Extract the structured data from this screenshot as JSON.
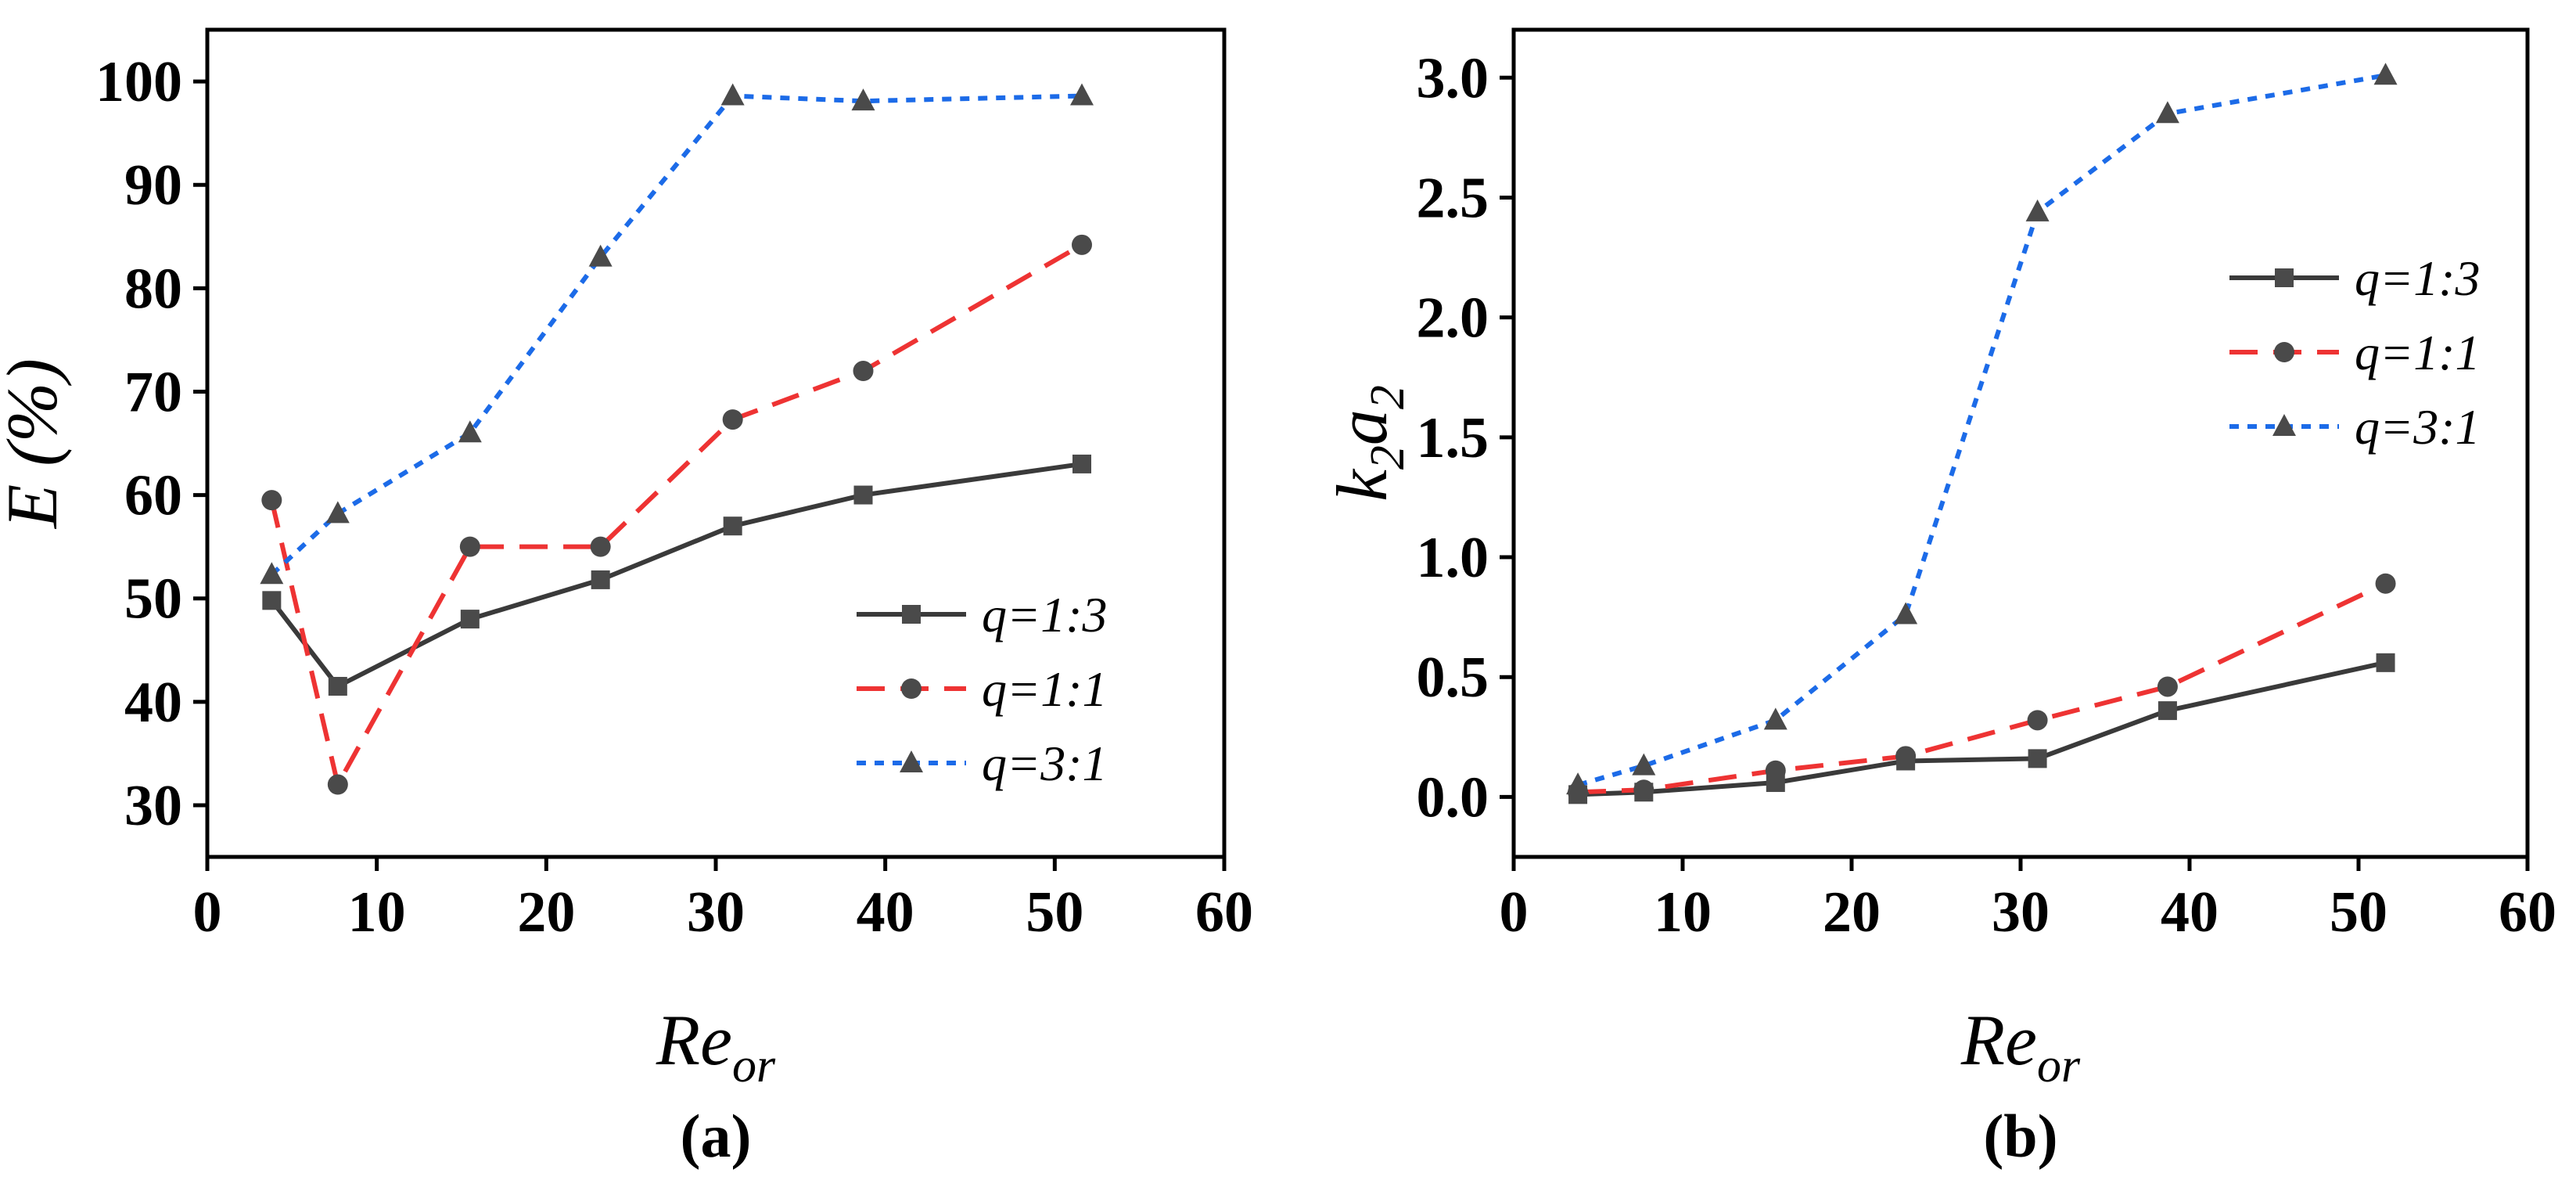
{
  "chart_data": [
    {
      "type": "line",
      "panel_label": "(a)",
      "xlabel": {
        "main": "Re",
        "sub": "or"
      },
      "ylabel": "E (%)",
      "xlim": [
        0,
        60
      ],
      "ylim": [
        25,
        105
      ],
      "xticks": [
        0,
        10,
        20,
        30,
        40,
        50,
        60
      ],
      "yticks": [
        30,
        40,
        50,
        60,
        70,
        80,
        90,
        100
      ],
      "x": [
        3.8,
        7.7,
        15.5,
        23.2,
        31,
        38.7,
        51.6
      ],
      "legend_position": "lower-right",
      "series": [
        {
          "name": "q=1:3",
          "color": "#3a3a3a",
          "dash": "solid",
          "marker": "square",
          "values": [
            49.8,
            41.5,
            48,
            51.8,
            57,
            60,
            63
          ]
        },
        {
          "name": "q=1:1",
          "color": "#ee3333",
          "dash": "dashed",
          "marker": "circle",
          "values": [
            59.5,
            32,
            55,
            55,
            67.3,
            72,
            84.2
          ]
        },
        {
          "name": "q=3:1",
          "color": "#1c6be8",
          "dash": "dotted",
          "marker": "triangle",
          "values": [
            52.3,
            58.2,
            66,
            83,
            98.6,
            98.1,
            98.6
          ]
        }
      ]
    },
    {
      "type": "line",
      "panel_label": "(b)",
      "xlabel": {
        "main": "Re",
        "sub": "or"
      },
      "ylabel": {
        "main1": "k",
        "sub1": "2",
        "main2": "a",
        "sub2": "2"
      },
      "xlim": [
        0,
        60
      ],
      "ylim": [
        -0.25,
        3.2
      ],
      "xticks": [
        0,
        10,
        20,
        30,
        40,
        50,
        60
      ],
      "yticks": [
        "0.0",
        "0.5",
        "1.0",
        "1.5",
        "2.0",
        "2.5",
        "3.0"
      ],
      "x": [
        3.8,
        7.7,
        15.5,
        23.2,
        31,
        38.7,
        51.6
      ],
      "legend_position": "upper-right",
      "series": [
        {
          "name": "q=1:3",
          "color": "#3a3a3a",
          "dash": "solid",
          "marker": "square",
          "values": [
            0.01,
            0.02,
            0.06,
            0.15,
            0.16,
            0.36,
            0.56
          ]
        },
        {
          "name": "q=1:1",
          "color": "#ee3333",
          "dash": "dashed",
          "marker": "circle",
          "values": [
            0.02,
            0.03,
            0.11,
            0.17,
            0.32,
            0.46,
            0.89
          ]
        },
        {
          "name": "q=3:1",
          "color": "#1c6be8",
          "dash": "dotted",
          "marker": "triangle",
          "values": [
            0.05,
            0.13,
            0.32,
            0.76,
            2.44,
            2.85,
            3.01
          ]
        }
      ]
    }
  ]
}
